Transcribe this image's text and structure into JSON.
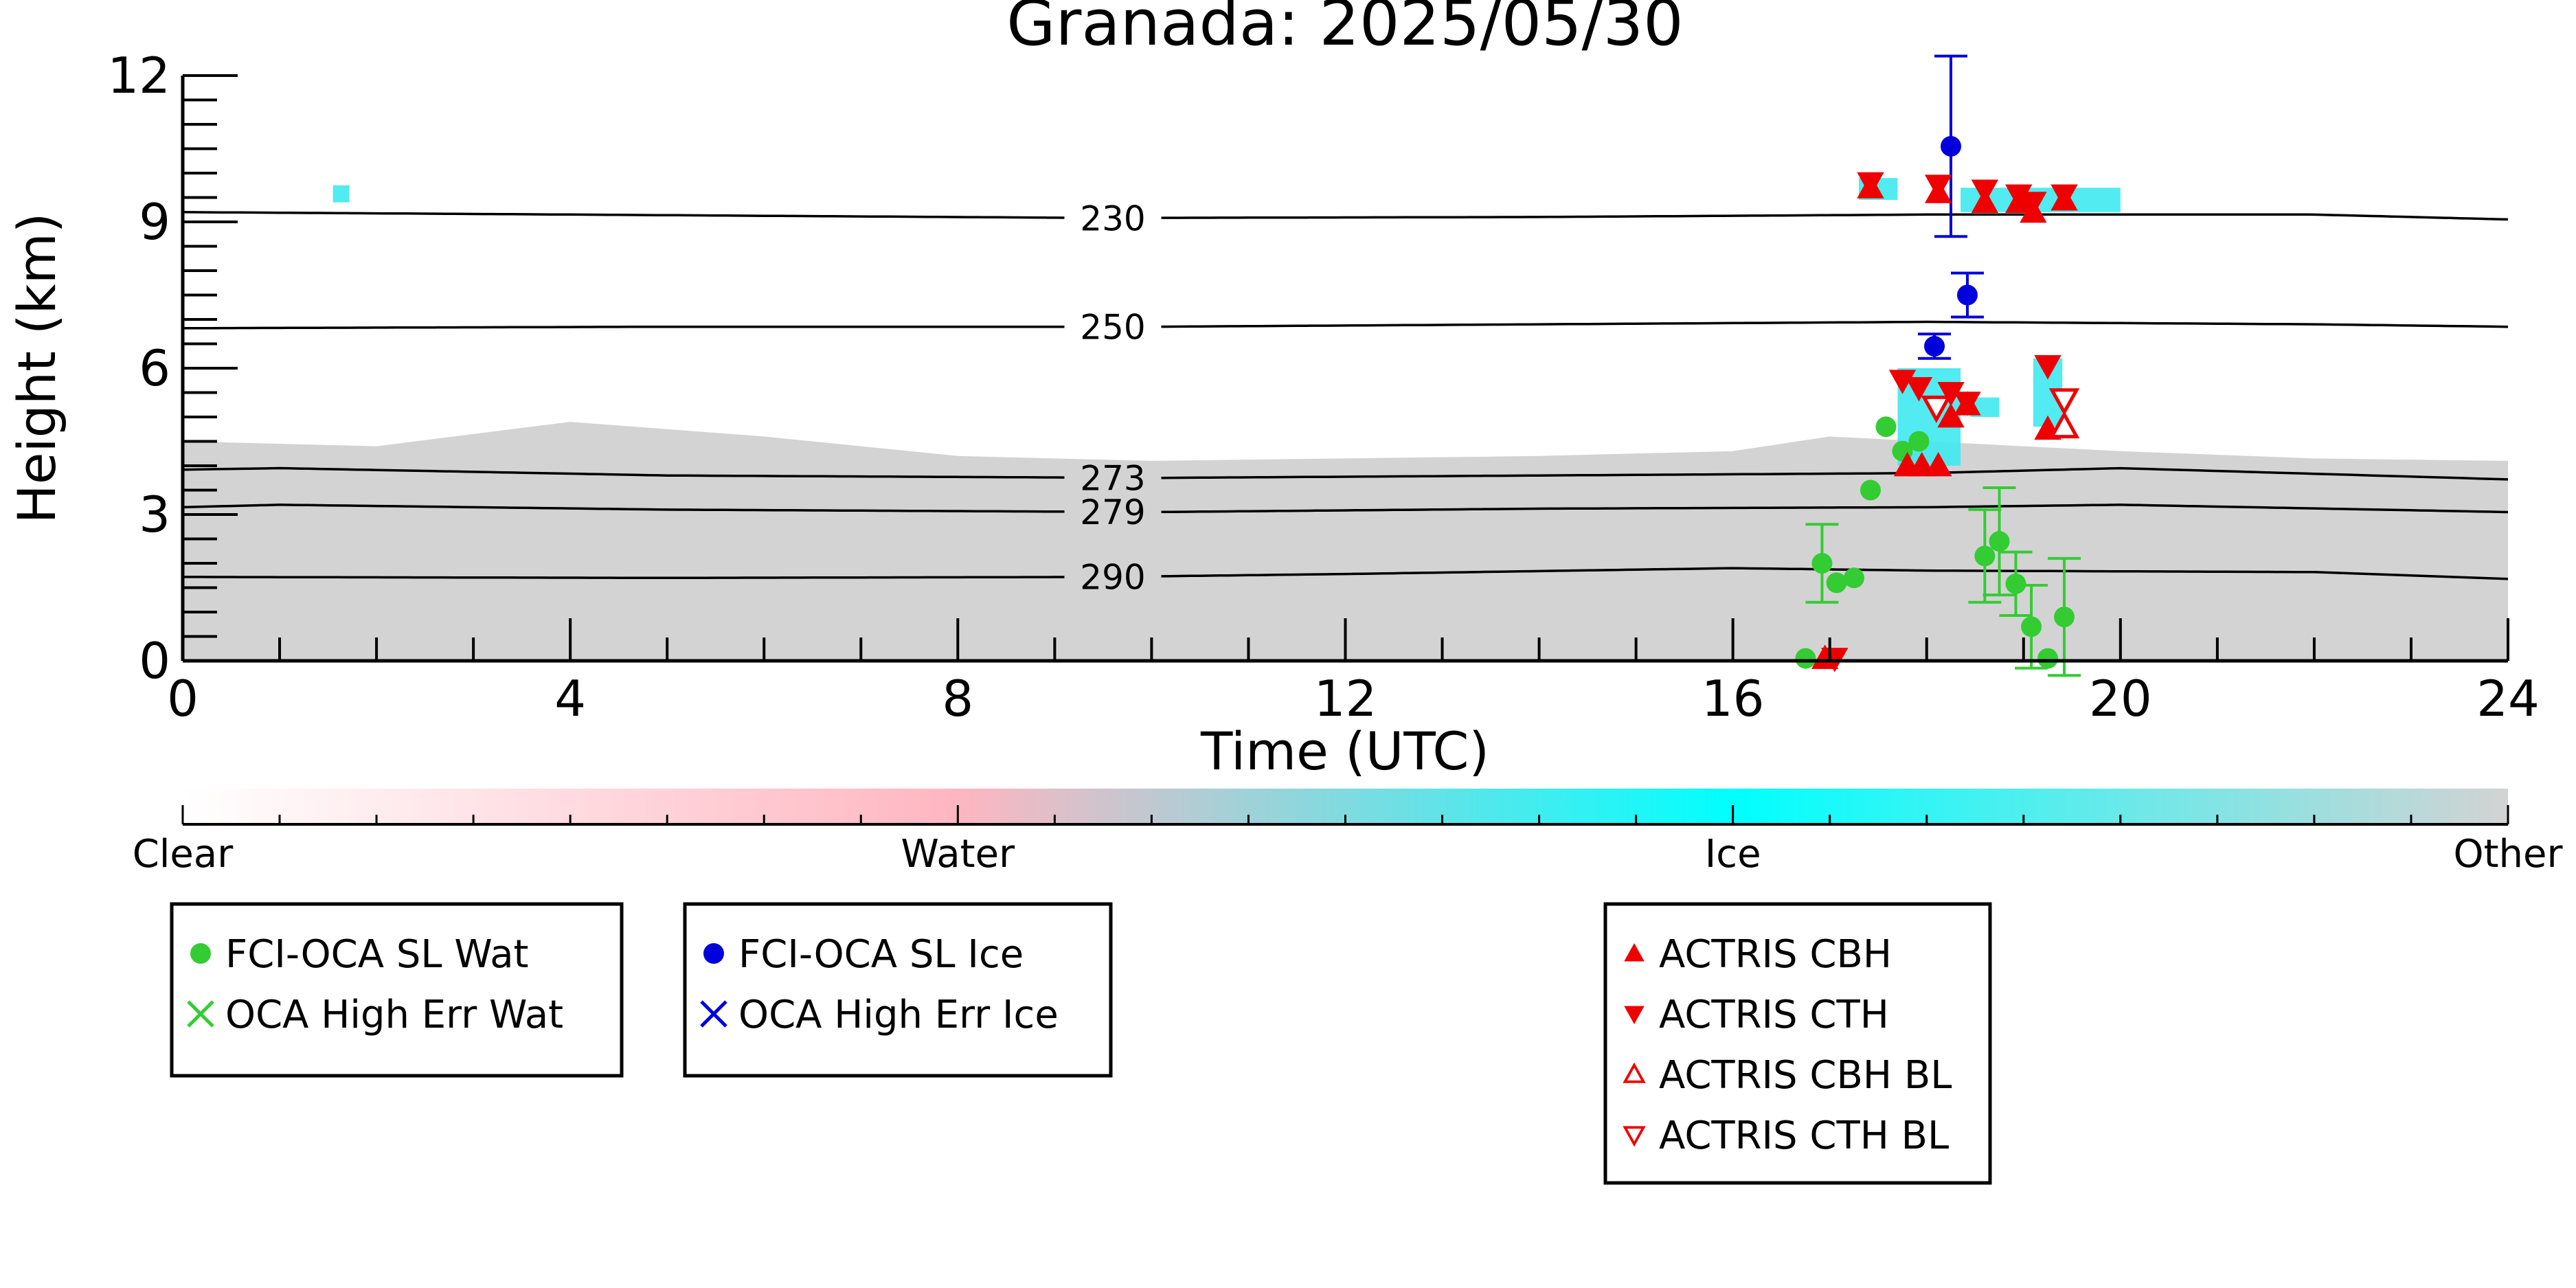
{
  "chart_data": {
    "type": "scatter",
    "title": "Granada: 2025/05/30",
    "xlabel": "Time (UTC)",
    "ylabel": "Height (km)",
    "xlim": [
      0,
      24
    ],
    "ylim": [
      0,
      12
    ],
    "x_ticks": [
      0,
      4,
      8,
      12,
      16,
      20,
      24
    ],
    "y_ticks": [
      0,
      3,
      6,
      9,
      12
    ],
    "grid": false,
    "contours": [
      {
        "label": "230",
        "points": [
          [
            0,
            9.2
          ],
          [
            4,
            9.15
          ],
          [
            9.5,
            9.08
          ],
          [
            14,
            9.1
          ],
          [
            18,
            9.15
          ],
          [
            22,
            9.15
          ],
          [
            24,
            9.05
          ]
        ]
      },
      {
        "label": "250",
        "points": [
          [
            0,
            6.82
          ],
          [
            5,
            6.85
          ],
          [
            10,
            6.85
          ],
          [
            14,
            6.9
          ],
          [
            18,
            6.95
          ],
          [
            22,
            6.9
          ],
          [
            24,
            6.85
          ]
        ]
      },
      {
        "label": "273",
        "points": [
          [
            0,
            3.92
          ],
          [
            1,
            3.95
          ],
          [
            5,
            3.8
          ],
          [
            10,
            3.75
          ],
          [
            14,
            3.8
          ],
          [
            18,
            3.85
          ],
          [
            20,
            3.95
          ],
          [
            24,
            3.72
          ]
        ]
      },
      {
        "label": "279",
        "points": [
          [
            0,
            3.15
          ],
          [
            1,
            3.2
          ],
          [
            5,
            3.1
          ],
          [
            10,
            3.05
          ],
          [
            14,
            3.12
          ],
          [
            18,
            3.15
          ],
          [
            20,
            3.2
          ],
          [
            24,
            3.05
          ]
        ]
      },
      {
        "label": "290",
        "points": [
          [
            0,
            1.72
          ],
          [
            5,
            1.7
          ],
          [
            9.5,
            1.72
          ],
          [
            12,
            1.78
          ],
          [
            16,
            1.9
          ],
          [
            18,
            1.85
          ],
          [
            22,
            1.82
          ],
          [
            24,
            1.68
          ]
        ]
      }
    ],
    "series": [
      {
        "name": "FCI-OCA SL Wat",
        "marker": "circle",
        "color": "#33cc33",
        "points": [
          {
            "x": 16.75,
            "y": 0.05
          },
          {
            "x": 16.92,
            "y": 2.0,
            "err": 0.8
          },
          {
            "x": 17.07,
            "y": 1.6
          },
          {
            "x": 17.25,
            "y": 1.7
          },
          {
            "x": 17.42,
            "y": 3.5
          },
          {
            "x": 17.58,
            "y": 4.8
          },
          {
            "x": 17.75,
            "y": 4.3
          },
          {
            "x": 17.92,
            "y": 4.5
          },
          {
            "x": 18.6,
            "y": 2.15,
            "err": 0.95
          },
          {
            "x": 18.75,
            "y": 2.45,
            "err": 1.1
          },
          {
            "x": 18.92,
            "y": 1.58,
            "err": 0.65
          },
          {
            "x": 19.08,
            "y": 0.7,
            "err": 0.85
          },
          {
            "x": 19.25,
            "y": 0.05
          },
          {
            "x": 19.42,
            "y": 0.9,
            "err": 1.2
          }
        ]
      },
      {
        "name": "OCA High Err Wat",
        "marker": "x",
        "color": "#33cc33",
        "points": []
      },
      {
        "name": "FCI-OCA SL Ice",
        "marker": "circle",
        "color": "#0000dd",
        "points": [
          {
            "x": 18.08,
            "y": 6.45,
            "err": 0.25
          },
          {
            "x": 18.25,
            "y": 10.55,
            "err": 1.85
          },
          {
            "x": 18.42,
            "y": 7.5,
            "err": 0.45
          }
        ]
      },
      {
        "name": "OCA High Err Ice",
        "marker": "x",
        "color": "#0000dd",
        "points": []
      },
      {
        "name": "ACTRIS CBH",
        "marker": "triangle-up",
        "color": "#ee0000",
        "points": [
          {
            "x": 16.95,
            "y": 0.05
          },
          {
            "x": 17.42,
            "y": 9.7
          },
          {
            "x": 17.8,
            "y": 4.0
          },
          {
            "x": 17.95,
            "y": 4.0
          },
          {
            "x": 18.12,
            "y": 4.0
          },
          {
            "x": 18.12,
            "y": 9.6
          },
          {
            "x": 18.25,
            "y": 5.0
          },
          {
            "x": 18.42,
            "y": 5.25
          },
          {
            "x": 18.6,
            "y": 9.4
          },
          {
            "x": 18.95,
            "y": 9.4
          },
          {
            "x": 19.1,
            "y": 9.2
          },
          {
            "x": 19.25,
            "y": 4.75
          },
          {
            "x": 19.42,
            "y": 9.45
          }
        ]
      },
      {
        "name": "ACTRIS CTH",
        "marker": "triangle-down",
        "color": "#ee0000",
        "points": [
          {
            "x": 17.05,
            "y": 0.05
          },
          {
            "x": 17.42,
            "y": 9.8
          },
          {
            "x": 17.75,
            "y": 5.75
          },
          {
            "x": 17.92,
            "y": 5.6
          },
          {
            "x": 18.12,
            "y": 9.75
          },
          {
            "x": 18.25,
            "y": 5.5
          },
          {
            "x": 18.42,
            "y": 5.3
          },
          {
            "x": 18.6,
            "y": 9.65
          },
          {
            "x": 18.95,
            "y": 9.55
          },
          {
            "x": 19.1,
            "y": 9.4
          },
          {
            "x": 19.25,
            "y": 6.05
          },
          {
            "x": 19.42,
            "y": 9.55
          }
        ]
      },
      {
        "name": "ACTRIS CBH BL",
        "marker": "triangle-up-open",
        "color": "#ee0000",
        "points": [
          {
            "x": 19.42,
            "y": 4.8
          }
        ]
      },
      {
        "name": "ACTRIS CTH BL",
        "marker": "triangle-down-open",
        "color": "#ee0000",
        "points": [
          {
            "x": 18.1,
            "y": 5.2
          },
          {
            "x": 19.42,
            "y": 5.35
          }
        ]
      }
    ],
    "background_regions": [
      {
        "type": "Other",
        "color": "#d3d3d3",
        "profile": [
          [
            0,
            4.5
          ],
          [
            2,
            4.4
          ],
          [
            4,
            4.9
          ],
          [
            6,
            4.6
          ],
          [
            8,
            4.2
          ],
          [
            10,
            4.1
          ],
          [
            12,
            4.15
          ],
          [
            14,
            4.2
          ],
          [
            16,
            4.3
          ],
          [
            17,
            4.6
          ],
          [
            18,
            4.5
          ],
          [
            20,
            4.3
          ],
          [
            22,
            4.15
          ],
          [
            24,
            4.1
          ]
        ]
      }
    ],
    "ice_patches": [
      {
        "x0": 1.55,
        "x1": 1.72,
        "y0": 9.4,
        "y1": 9.75
      },
      {
        "x0": 17.3,
        "x1": 17.7,
        "y0": 9.45,
        "y1": 9.9
      },
      {
        "x0": 18.35,
        "x1": 20.0,
        "y0": 9.2,
        "y1": 9.7
      },
      {
        "x0": 17.7,
        "x1": 18.35,
        "y0": 4.0,
        "y1": 6.0
      },
      {
        "x0": 18.45,
        "x1": 18.75,
        "y0": 5.0,
        "y1": 5.4
      },
      {
        "x0": 19.1,
        "x1": 19.4,
        "y0": 4.8,
        "y1": 6.2
      }
    ],
    "colorbar": {
      "labels": [
        "Clear",
        "Water",
        "Ice",
        "Other"
      ],
      "colors": [
        "#ffffff",
        "#ffb6c1",
        "#00ffff",
        "#d3d3d3"
      ]
    }
  }
}
